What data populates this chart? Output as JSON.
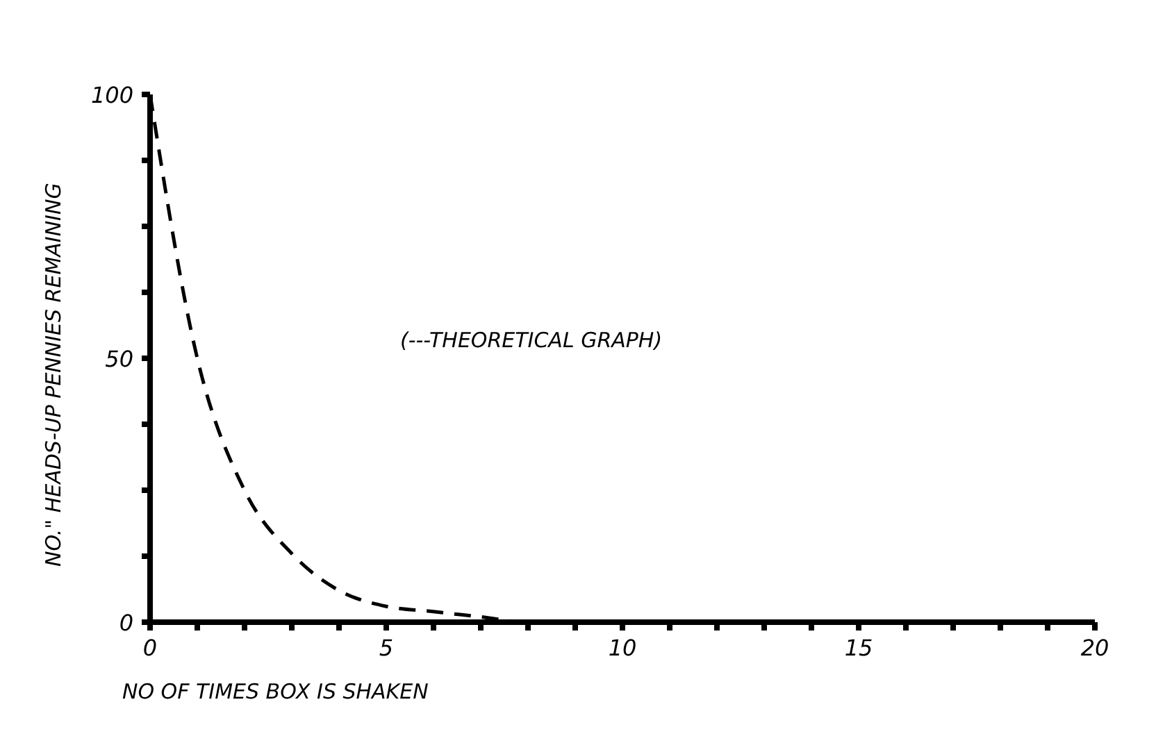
{
  "chart_data": {
    "type": "line",
    "xlabel": "NO OF TIMES BOX IS SHAKEN",
    "ylabel": "NO.\" HEADS-UP PENNIES REMAINING",
    "annotations": [
      "(---THEORETICAL GRAPH)"
    ],
    "x": [
      0,
      1,
      2,
      3,
      4,
      5,
      6,
      7,
      8,
      9,
      10,
      11,
      12,
      13,
      14,
      15,
      16,
      17,
      18,
      19,
      20
    ],
    "series": [
      {
        "color": "#000000",
        "values": [
          100,
          50,
          25,
          13,
          6,
          3,
          2,
          1,
          0,
          0,
          0,
          0,
          0,
          0,
          0,
          0,
          0,
          0,
          0,
          0,
          0
        ]
      }
    ],
    "xlim": [
      0,
      20
    ],
    "xticks": [
      0,
      {
        "value": 1,
        "label": null
      },
      {
        "value": 2,
        "label": null
      },
      {
        "value": 3,
        "label": null
      },
      {
        "value": 4,
        "label": null
      },
      5,
      {
        "value": 6,
        "label": null
      },
      {
        "value": 7,
        "label": null
      },
      {
        "value": 8,
        "label": null
      },
      {
        "value": 9,
        "label": null
      },
      10,
      {
        "value": 11,
        "label": null
      },
      {
        "value": 12,
        "label": null
      },
      {
        "value": 13,
        "label": null
      },
      {
        "value": 14,
        "label": null
      },
      15,
      {
        "value": 16,
        "label": null
      },
      {
        "value": 17,
        "label": null
      },
      {
        "value": 18,
        "label": null
      },
      {
        "value": 19,
        "label": null
      },
      20
    ],
    "ylim": [
      0,
      100
    ],
    "yticks": [
      0,
      {
        "value": 12.5,
        "label": null
      },
      {
        "value": 25,
        "label": null
      },
      {
        "value": 37.5,
        "label": null
      },
      50,
      {
        "value": 62.5,
        "label": null
      },
      {
        "value": 75,
        "label": null
      },
      {
        "value": 87.5,
        "label": null
      },
      100
    ],
    "grid": false,
    "legend": false,
    "marker": "none",
    "line_style": "dashed"
  }
}
